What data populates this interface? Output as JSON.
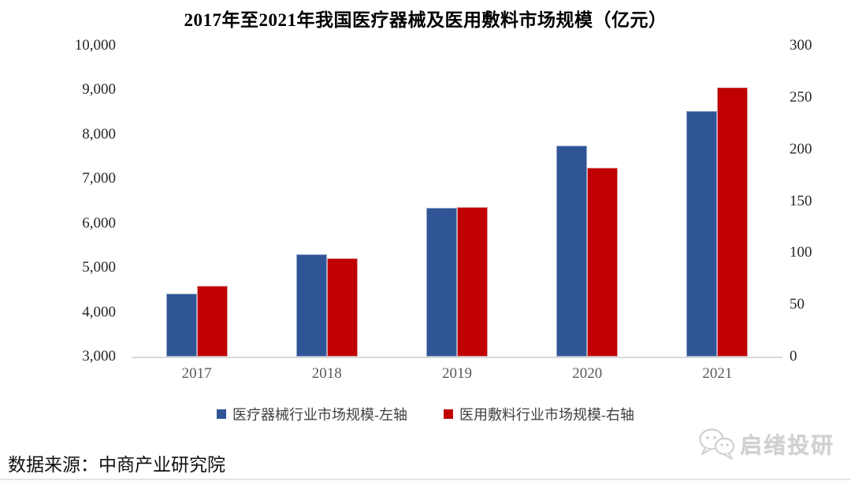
{
  "title": "2017年至2021年我国医疗器械及医用敷料市场规模（亿元）",
  "source": "数据来源：中商产业研究院",
  "watermark": {
    "text": "启绪投研"
  },
  "legend": [
    {
      "key": "device",
      "label": "医疗器械行业市场规模-左轴",
      "color": "#2F5597"
    },
    {
      "key": "dressing",
      "label": "医用敷料行业市场规模-右轴",
      "color": "#C00000"
    }
  ],
  "colors": {
    "device_bar": "#2F5597",
    "device_bar_border": "#94A9CE",
    "dressing_bar": "#C00000",
    "dressing_bar_border": "#DD9FA2",
    "axis_line": "#D9D9D9",
    "tick_text": "#262626",
    "year_text": "#595959",
    "watermark_text": "#d0d0d0"
  },
  "chart_data": {
    "type": "bar",
    "title": "2017年至2021年我国医疗器械及医用敷料市场规模（亿元）",
    "categories": [
      "2017",
      "2018",
      "2019",
      "2020",
      "2021"
    ],
    "series": [
      {
        "name": "医疗器械行业市场规模-左轴",
        "key": "device",
        "axis": "left",
        "color": "#2F5597",
        "border_color": "#94A9CE",
        "values": [
          4420,
          5310,
          6350,
          7750,
          8530
        ]
      },
      {
        "name": "医用敷料行业市场规模-右轴",
        "key": "dressing",
        "axis": "right",
        "color": "#C00000",
        "border_color": "#DD9FA2",
        "values": [
          68,
          95,
          144,
          182,
          260
        ]
      }
    ],
    "left_axis": {
      "min": 3000,
      "max": 10000,
      "tick_labels": [
        "10,000",
        "9,000",
        "8,000",
        "7,000",
        "6,000",
        "5,000",
        "4,000",
        "3,000"
      ]
    },
    "right_axis": {
      "min": 0,
      "max": 300,
      "tick_labels": [
        "300",
        "250",
        "200",
        "150",
        "100",
        "50",
        "0"
      ]
    },
    "grid": false,
    "legend_position": "bottom"
  }
}
